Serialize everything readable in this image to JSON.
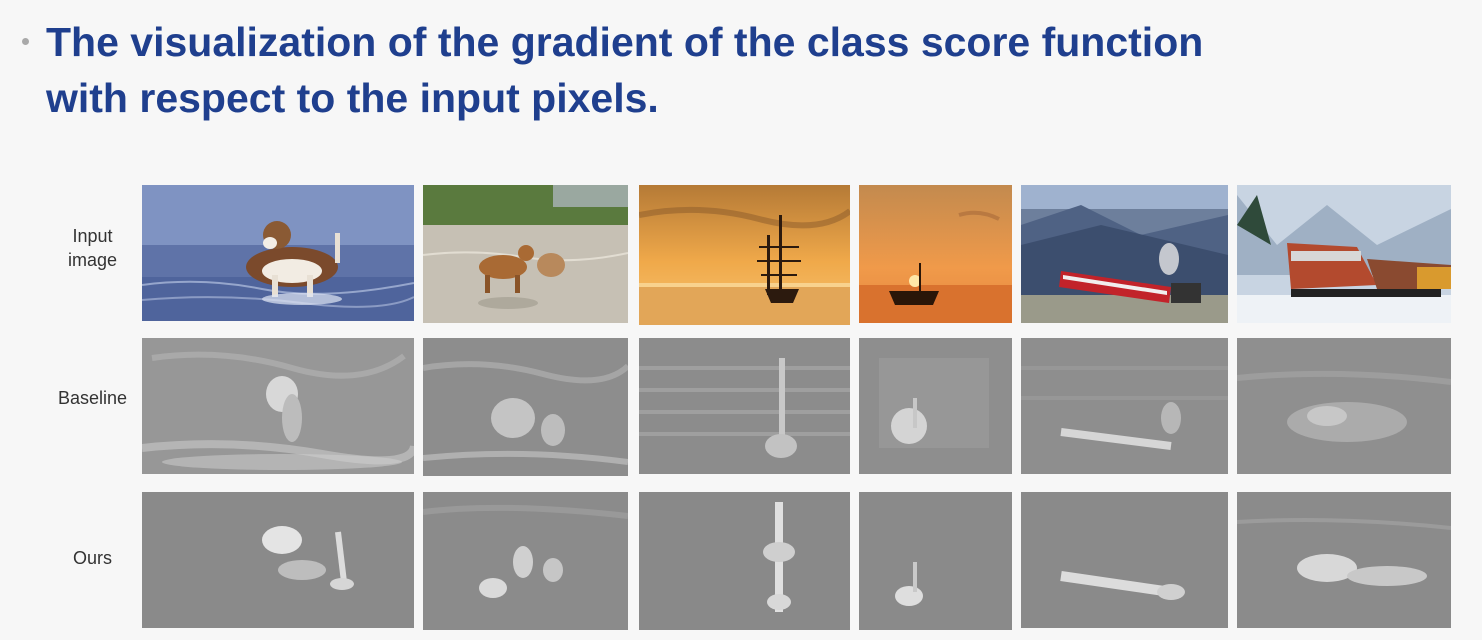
{
  "slide": {
    "title_line1": "The visualization of the gradient of the class score function",
    "title_line2": "with respect to the input pixels."
  },
  "rows": {
    "input": {
      "label_line1": "Input",
      "label_line2": "image"
    },
    "baseline": {
      "label": "Baseline"
    },
    "ours": {
      "label": "Ours"
    }
  },
  "colors": {
    "title": "#1f3f8e",
    "bullet": "#a9a9a9",
    "saliency_bg": "#8c8c8c"
  },
  "icons": [
    "bullet-dot"
  ]
}
